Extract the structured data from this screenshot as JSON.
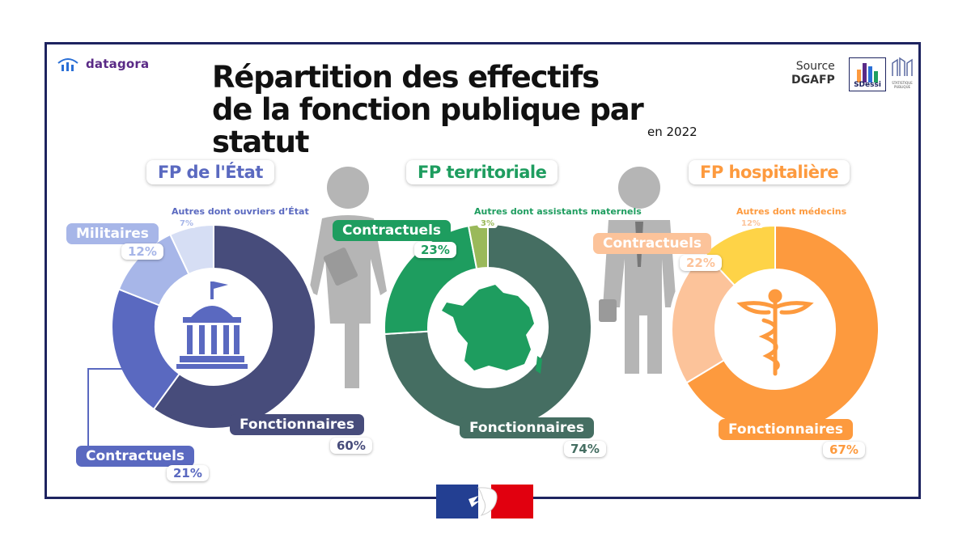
{
  "brand": {
    "name": "datagora"
  },
  "title": {
    "line1": "Répartition des effectifs",
    "line2": "de la fonction publique par statut"
  },
  "subtitle": "en 2022",
  "source": {
    "label": "Source",
    "name": "DGAFP",
    "logo_text": "SDessi",
    "logo2_text": "STATISTIQUE PUBLIQUE"
  },
  "chart_data": [
    {
      "type": "pie",
      "title": "FP de l'État",
      "slices": [
        {
          "label": "Fonctionnaires",
          "value": 60,
          "color": "#474c7b"
        },
        {
          "label": "Contractuels",
          "value": 21,
          "color": "#5a69c0"
        },
        {
          "label": "Militaires",
          "value": 12,
          "color": "#a7b6e8"
        },
        {
          "label": "Autres dont ouvriers d'État",
          "value": 7,
          "color": "#d6def4"
        }
      ]
    },
    {
      "type": "pie",
      "title": "FP territoriale",
      "slices": [
        {
          "label": "Fonctionnaires",
          "value": 74,
          "color": "#456e62"
        },
        {
          "label": "Contractuels",
          "value": 23,
          "color": "#1e9d5f"
        },
        {
          "label": "Autres dont assistants maternels",
          "value": 3,
          "color": "#9ab95a"
        }
      ]
    },
    {
      "type": "pie",
      "title": "FP hospitalière",
      "slices": [
        {
          "label": "Fonctionnaires",
          "value": 67,
          "color": "#fd9a3e"
        },
        {
          "label": "Contractuels",
          "value": 22,
          "color": "#fcc39a"
        },
        {
          "label": "Autres dont médecins",
          "value": 12,
          "color": "#fed347"
        }
      ]
    }
  ],
  "labels": {
    "etat": {
      "fonct": "Fonctionnaires",
      "fonct_pct": "60%",
      "contr": "Contractuels",
      "contr_pct": "21%",
      "mil": "Militaires",
      "mil_pct": "12%",
      "autres": "Autres dont ouvriers d’État",
      "autres_pct": "7%"
    },
    "terr": {
      "fonct": "Fonctionnaires",
      "fonct_pct": "74%",
      "contr": "Contractuels",
      "contr_pct": "23%",
      "autres": "Autres dont assistants maternels",
      "autres_pct": "3%"
    },
    "hosp": {
      "fonct": "Fonctionnaires",
      "fonct_pct": "67%",
      "contr": "Contractuels",
      "contr_pct": "22%",
      "autres": "Autres dont médecins",
      "autres_pct": "12%"
    }
  },
  "colors": {
    "navy": "#1e2460",
    "etat": "#5a69c0",
    "terr": "#1e9d5f",
    "hosp": "#fd9a3e",
    "grey": "#b3b3b3"
  }
}
